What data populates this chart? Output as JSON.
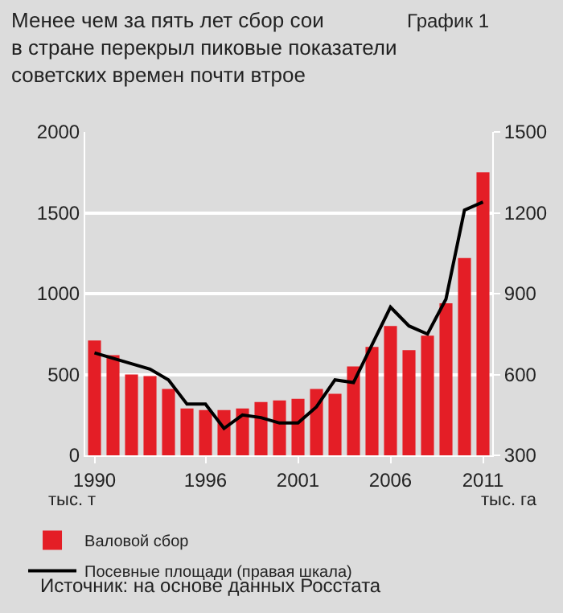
{
  "chart_data": {
    "type": "bar",
    "title": "Менее чем за пять лет сбор сои\nв стране перекрыл пиковые показатели\nсоветских времен почти втрое",
    "annotations": [
      "График 1",
      "Источник: на основе данных Росстата"
    ],
    "ylabel": "тыс. т",
    "y2label": "тыс. га",
    "x": [
      1990,
      1991,
      1992,
      1993,
      1994,
      1995,
      1996,
      1997,
      1998,
      1999,
      2000,
      2001,
      2002,
      2003,
      2004,
      2005,
      2006,
      2007,
      2008,
      2009,
      2010,
      2011
    ],
    "xlim": [
      1989.5,
      2011.5
    ],
    "xticks": [
      1990,
      1996,
      2001,
      2006,
      2011
    ],
    "ylim": [
      0,
      2000
    ],
    "yticks": [
      0,
      500,
      1000,
      1500,
      2000
    ],
    "y2lim": [
      300,
      1500
    ],
    "y2ticks": [
      300,
      600,
      900,
      1200,
      1500
    ],
    "series": [
      {
        "name": "Валовой сбор",
        "color": "#e41e26",
        "values": [
          710,
          620,
          500,
          490,
          410,
          290,
          280,
          280,
          290,
          330,
          340,
          350,
          410,
          380,
          550,
          670,
          800,
          650,
          740,
          940,
          1220,
          1750
        ]
      },
      {
        "name": "Посевные площади (правая шкала)",
        "type": "line",
        "axis": "y2",
        "color": "#000000",
        "values": [
          680,
          660,
          640,
          620,
          580,
          490,
          490,
          400,
          450,
          440,
          420,
          420,
          480,
          580,
          570,
          710,
          850,
          780,
          750,
          880,
          1210,
          1240
        ]
      }
    ],
    "grid": "y",
    "legend": "bottom",
    "marker": "none",
    "line_style": "solid"
  }
}
